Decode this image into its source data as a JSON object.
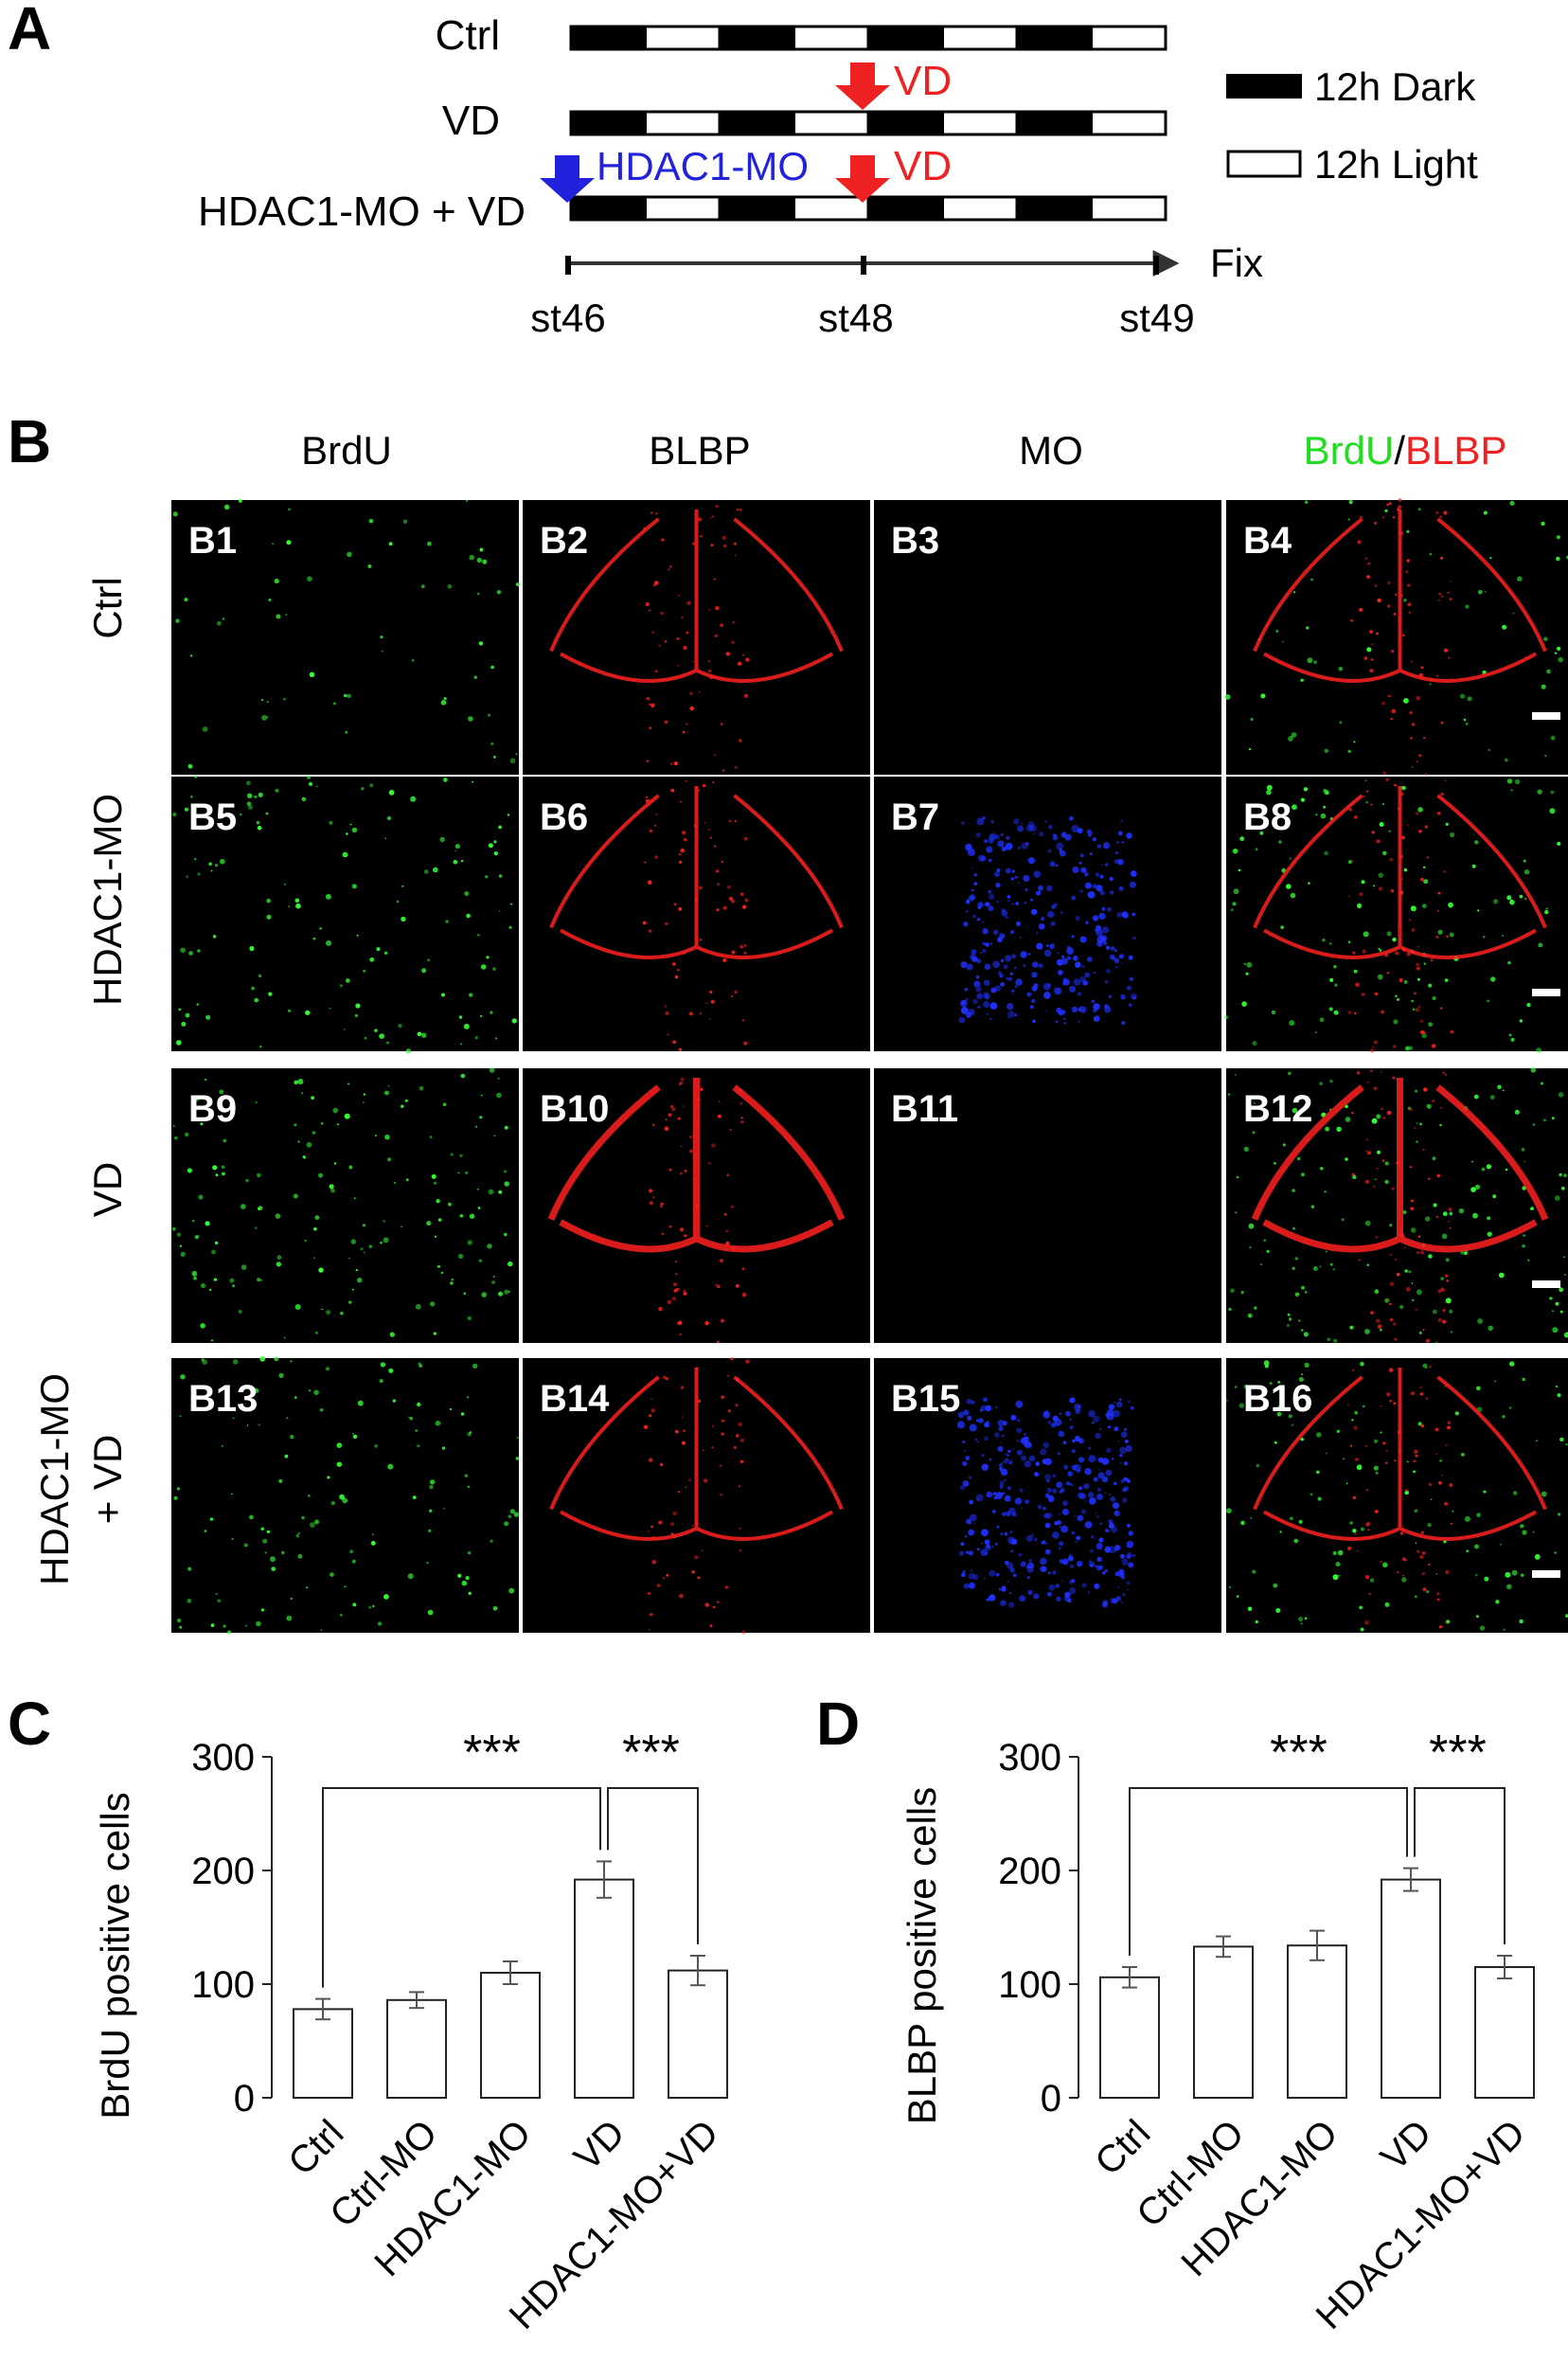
{
  "panel_letters": {
    "a": "A",
    "b": "B",
    "c": "C",
    "d": "D"
  },
  "timeline": {
    "rows": [
      "Ctrl",
      "VD",
      "HDAC1-MO + VD"
    ],
    "markers": {
      "vd": "VD",
      "hdac1_mo": "HDAC1-MO"
    },
    "legend": {
      "dark": "12h Dark",
      "light": "12h Light"
    },
    "axis_end_label": "Fix",
    "stages": [
      "st46",
      "st48",
      "st49"
    ],
    "colors": {
      "vd": "#ee2222",
      "hdac1_mo": "#2222dd",
      "dark": "#000000",
      "light": "#ffffff"
    }
  },
  "micrographs": {
    "columns": [
      {
        "text": "BrdU",
        "color": "#111111"
      },
      {
        "text": "BLBP",
        "color": "#111111"
      },
      {
        "text": "MO",
        "color": "#111111"
      },
      {
        "text": "",
        "color": "#111111"
      }
    ],
    "merge_header": {
      "part1": "BrdU",
      "sep": "/",
      "part2": "BLBP",
      "color1": "#22dd22",
      "color2": "#ee2222"
    },
    "rows": [
      {
        "line1": "Ctrl",
        "line2": ""
      },
      {
        "line1": "HDAC1-MO",
        "line2": ""
      },
      {
        "line1": "VD",
        "line2": ""
      },
      {
        "line1": "HDAC1-MO",
        "line2": "+ VD"
      }
    ],
    "panel_labels": [
      "B1",
      "B2",
      "B3",
      "B4",
      "B5",
      "B6",
      "B7",
      "B8",
      "B9",
      "B10",
      "B11",
      "B12",
      "B13",
      "B14",
      "B15",
      "B16"
    ],
    "channel_colors": {
      "brdu": "#33ff33",
      "blbp": "#ff2020",
      "mo": "#2030ff"
    }
  },
  "chart_data": [
    {
      "type": "bar",
      "panel": "C",
      "ylabel": "BrdU positive cells",
      "xlabel": "",
      "categories": [
        "Ctrl",
        "Ctrl-MO",
        "HDAC1-MO",
        "VD",
        "HDAC1-MO+VD"
      ],
      "values": [
        78,
        86,
        110,
        192,
        112
      ],
      "errors": [
        9,
        7,
        10,
        16,
        13
      ],
      "ylim": [
        0,
        300
      ],
      "yticks": [
        0,
        100,
        200,
        300
      ],
      "significance": [
        {
          "from": "Ctrl",
          "to": "VD",
          "label": "***"
        },
        {
          "from": "VD",
          "to": "HDAC1-MO+VD",
          "label": "***"
        }
      ]
    },
    {
      "type": "bar",
      "panel": "D",
      "ylabel": "BLBP positive cells",
      "xlabel": "",
      "categories": [
        "Ctrl",
        "Ctrl-MO",
        "HDAC1-MO",
        "VD",
        "HDAC1-MO+VD"
      ],
      "values": [
        106,
        133,
        134,
        192,
        115
      ],
      "errors": [
        9,
        9,
        13,
        10,
        10
      ],
      "ylim": [
        0,
        300
      ],
      "yticks": [
        0,
        100,
        200,
        300
      ],
      "significance": [
        {
          "from": "Ctrl",
          "to": "VD",
          "label": "***"
        },
        {
          "from": "VD",
          "to": "HDAC1-MO+VD",
          "label": "***"
        }
      ]
    }
  ]
}
